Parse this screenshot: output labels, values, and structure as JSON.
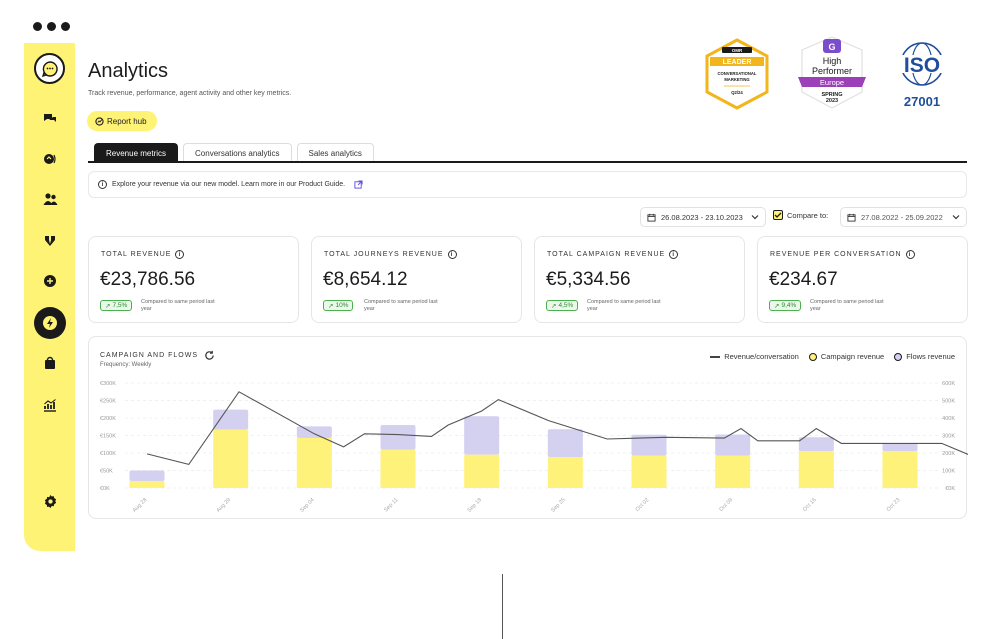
{
  "page": {
    "title": "Analytics",
    "subtitle": "Track revenue, performance, agent activity and other key metrics.",
    "report_hub_label": "Report hub"
  },
  "badges": {
    "omr": {
      "brand": "OMR",
      "rank": "LEADER",
      "line1": "CONVERSATIONAL",
      "line2": "MARKETING",
      "period": "Q2/24"
    },
    "g2": {
      "line1": "High",
      "line2": "Performer",
      "region": "Europe",
      "season": "SPRING",
      "year": "2023"
    },
    "iso": {
      "name": "ISO",
      "number": "27001"
    }
  },
  "tabs": [
    {
      "label": "Revenue metrics",
      "active": true
    },
    {
      "label": "Conversations analytics",
      "active": false
    },
    {
      "label": "Sales analytics",
      "active": false
    }
  ],
  "info_banner": "Explore your revenue via our new model. Learn more in our Product Guide.",
  "date_range": "26.08.2023 - 23.10.2023",
  "compare_label": "Compare to:",
  "compare_range": "27.08.2022 - 25.09.2022",
  "metrics": [
    {
      "label": "TOTAL REVENUE",
      "value": "€23,786.56",
      "delta": "7,5%",
      "note": "Compared to same period last year"
    },
    {
      "label": "TOTAL JOURNEYS REVENUE",
      "value": "€8,654.12",
      "delta": "10%",
      "note": "Compared to same period last year"
    },
    {
      "label": "TOTAL CAMPAIGN REVENUE",
      "value": "€5,334.56",
      "delta": "4,5%",
      "note": "Compared to same period last year"
    },
    {
      "label": "REVENUE PER CONVERSATION",
      "value": "€234.67",
      "delta": "9,4%",
      "note": "Compared to same period last year"
    }
  ],
  "chart": {
    "title": "CAMPAIGN AND FLOWS",
    "frequency": "Frequency: Weekly",
    "legend": {
      "line": "Revenue/conversation",
      "campaign": "Campaign revenue",
      "flows": "Flows revenue"
    },
    "colors": {
      "campaign": "#fff27a",
      "flows": "#d3d0f0",
      "line": "#555555"
    }
  },
  "chart_data": {
    "type": "bar",
    "stacked": true,
    "categories": [
      "Aug 28",
      "Aug 29",
      "Sep 04",
      "Sep 11",
      "Sep 18",
      "Sep 25",
      "Oct 02",
      "Oct 09",
      "Oct 16",
      "Oct 23"
    ],
    "left_axis_ticks": [
      "€300K",
      "€250K",
      "€200K",
      "€150K",
      "€100K",
      "€50K",
      "€0K"
    ],
    "right_axis_ticks": [
      "600K",
      "500K",
      "400K",
      "300K",
      "200K",
      "100K",
      "€0K"
    ],
    "ylim": [
      0,
      300000
    ],
    "y2lim": [
      0,
      600000
    ],
    "series": [
      {
        "name": "Campaign revenue",
        "values": [
          20000,
          167000,
          143000,
          110000,
          95000,
          88000,
          92000,
          93000,
          105000,
          105000
        ]
      },
      {
        "name": "Flows revenue",
        "values": [
          30000,
          57000,
          33000,
          70000,
          110000,
          80000,
          60000,
          60000,
          40000,
          23000
        ]
      }
    ],
    "line": {
      "name": "Revenue/conversation",
      "x": [
        0,
        0.5,
        1.1,
        2.0,
        2.35,
        2.6,
        3.0,
        3.4,
        3.6,
        4.0,
        4.2,
        4.8,
        5.5,
        6.2,
        6.9,
        7.1,
        7.3,
        7.8,
        8.0,
        8.3,
        9.5,
        9.9
      ],
      "values": [
        195000,
        135000,
        550000,
        310000,
        235000,
        310000,
        305000,
        295000,
        360000,
        440000,
        505000,
        385000,
        280000,
        290000,
        285000,
        340000,
        270000,
        270000,
        340000,
        255000,
        255000,
        175000
      ]
    }
  }
}
